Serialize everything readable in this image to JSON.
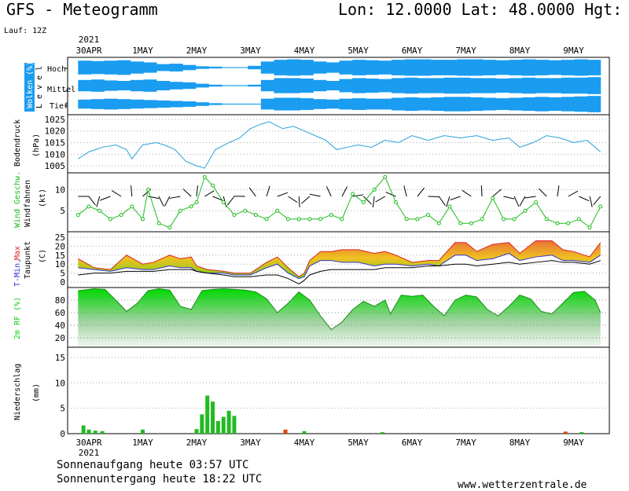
{
  "header": {
    "title": "GFS - Meteogramm",
    "coords": "Lon: 12.0000 Lat: 48.0000 Hgt: 5",
    "lauf": "Lauf: 12Z"
  },
  "footer": {
    "sunrise": "Sonnenaufgang heute 03:57 UTC",
    "sunset": "Sonnenuntergang heute 18:22 UTC",
    "site": "www.wetterzentrale.de"
  },
  "time_axis": {
    "year": "2021",
    "days": [
      "30APR",
      "1MAY",
      "2MAY",
      "3MAY",
      "4MAY",
      "5MAY",
      "6MAY",
      "7MAY",
      "8MAY",
      "9MAY"
    ]
  },
  "colors": {
    "cloud": "#1a9cf0",
    "pressure": "#2aa0d8",
    "wind": "#1dbb1d",
    "tmin": "#3333cc",
    "tmax": "#dd2222",
    "humidity": "#15cc15",
    "precip_rain": "#22bb22",
    "precip_conv": "#dd4400"
  },
  "panels": {
    "cloud": {
      "ylabel": "Wolken (%)",
      "levels_label": "L e v e l",
      "levels": [
        "Hoch",
        "Mittel",
        "Tief"
      ]
    },
    "pressure": {
      "ylabel": "Bodendruck",
      "unit": "(hPa)"
    },
    "wind": {
      "ylabel": "Wind Geschw.",
      "ylabel2": "Windfahnen",
      "unit": "(kt)"
    },
    "temp": {
      "ylabel_tmin": "T-Min,",
      "ylabel_tmax": "Max",
      "ylabel2": "Taupunkt",
      "unit": "(C)"
    },
    "humidity": {
      "ylabel": "2m RF (%)"
    },
    "precip": {
      "ylabel": "Niederschlag",
      "unit": "(mm)"
    }
  },
  "chart_data": [
    {
      "type": "heatmap",
      "title": "Wolken (%)",
      "description_levels": [
        "Hoch",
        "Mittel",
        "Tief"
      ],
      "x_day_start": -0.2,
      "x_day_end": 9.5,
      "cover_high": [
        80,
        75,
        80,
        85,
        70,
        60,
        40,
        45,
        30,
        15,
        10,
        5,
        5,
        20,
        70,
        90,
        95,
        90,
        70,
        60,
        80,
        90,
        85,
        80,
        90,
        95,
        95,
        90,
        90,
        95,
        95,
        90,
        85,
        90,
        95,
        90,
        85,
        90,
        95,
        90
      ],
      "cover_mid": [
        60,
        65,
        55,
        50,
        60,
        65,
        50,
        40,
        35,
        20,
        10,
        5,
        5,
        10,
        60,
        80,
        80,
        75,
        60,
        50,
        70,
        80,
        75,
        70,
        80,
        85,
        80,
        80,
        85,
        85,
        80,
        80,
        75,
        80,
        85,
        80,
        80,
        85,
        85,
        90
      ],
      "cover_low": [
        50,
        55,
        60,
        55,
        50,
        45,
        40,
        35,
        30,
        20,
        10,
        5,
        5,
        5,
        60,
        70,
        70,
        65,
        55,
        50,
        60,
        65,
        60,
        60,
        70,
        75,
        70,
        75,
        80,
        80,
        75,
        70,
        65,
        70,
        75,
        80,
        75,
        80,
        85,
        90
      ]
    },
    {
      "type": "line",
      "title": "Bodendruck",
      "ylabel": "(hPa)",
      "ylim": [
        1002,
        1027
      ],
      "yticks": [
        1005,
        1010,
        1015,
        1020,
        1025
      ],
      "x": [
        -0.2,
        0,
        0.25,
        0.5,
        0.7,
        0.8,
        1.0,
        1.25,
        1.4,
        1.6,
        1.8,
        2.0,
        2.15,
        2.35,
        2.6,
        2.8,
        3.0,
        3.2,
        3.35,
        3.6,
        3.8,
        4.0,
        4.2,
        4.4,
        4.6,
        4.8,
        5.0,
        5.25,
        5.5,
        5.75,
        6.0,
        6.3,
        6.6,
        6.9,
        7.2,
        7.5,
        7.8,
        8.0,
        8.25,
        8.5,
        8.75,
        9.0,
        9.25,
        9.5
      ],
      "y": [
        1008,
        1011,
        1013,
        1014,
        1012,
        1008,
        1014,
        1015,
        1014,
        1012,
        1007,
        1005,
        1004,
        1012,
        1015,
        1017,
        1021,
        1023,
        1024,
        1021,
        1022,
        1020,
        1018,
        1016,
        1012,
        1013,
        1014,
        1013,
        1016,
        1015,
        1018,
        1016,
        1018,
        1017,
        1018,
        1016,
        1017,
        1013,
        1015,
        1018,
        1017,
        1015,
        1016,
        1011
      ]
    },
    {
      "type": "line",
      "title": "Wind Geschw.",
      "ylabel": "(kt)",
      "ylim": [
        0,
        14
      ],
      "yticks": [
        5,
        10
      ],
      "x": [
        -0.2,
        0,
        0.2,
        0.4,
        0.6,
        0.8,
        1.0,
        1.1,
        1.3,
        1.5,
        1.7,
        1.9,
        2.0,
        2.15,
        2.3,
        2.5,
        2.7,
        2.9,
        3.1,
        3.3,
        3.5,
        3.7,
        3.9,
        4.1,
        4.3,
        4.5,
        4.7,
        4.9,
        5.1,
        5.3,
        5.5,
        5.7,
        5.9,
        6.1,
        6.3,
        6.5,
        6.7,
        6.9,
        7.1,
        7.3,
        7.5,
        7.7,
        7.9,
        8.1,
        8.3,
        8.5,
        8.7,
        8.9,
        9.1,
        9.3,
        9.5
      ],
      "y": [
        4,
        6,
        5,
        3,
        4,
        6,
        3,
        10,
        2,
        1,
        5,
        6,
        7,
        13,
        11,
        7,
        4,
        5,
        4,
        3,
        5,
        3,
        3,
        3,
        3,
        4,
        3,
        9,
        7,
        10,
        13,
        7,
        3,
        3,
        4,
        2,
        6,
        2,
        2,
        3,
        8,
        3,
        3,
        5,
        7,
        3,
        2,
        2,
        3,
        1,
        6
      ]
    },
    {
      "type": "area",
      "title": "T-Min, Max / Taupunkt",
      "ylabel": "(C)",
      "ylim": [
        -3,
        28
      ],
      "yticks": [
        0,
        5,
        10,
        15,
        20,
        25
      ],
      "x": [
        -0.2,
        0.1,
        0.4,
        0.7,
        1.0,
        1.2,
        1.5,
        1.7,
        1.9,
        2.0,
        2.2,
        2.5,
        2.7,
        3.0,
        3.3,
        3.5,
        3.7,
        3.9,
        4.0,
        4.1,
        4.3,
        4.5,
        4.7,
        5.0,
        5.3,
        5.5,
        5.7,
        6.0,
        6.3,
        6.5,
        6.8,
        7.0,
        7.2,
        7.5,
        7.8,
        8.0,
        8.3,
        8.6,
        8.8,
        9.0,
        9.3,
        9.5
      ],
      "t_max": [
        13,
        8,
        7,
        15,
        10,
        11,
        15,
        13,
        14,
        9,
        7,
        6,
        5,
        5,
        11,
        14,
        8,
        3,
        5,
        12,
        17,
        17,
        18,
        18,
        16,
        17,
        15,
        11,
        12,
        12,
        22,
        22,
        17,
        21,
        22,
        16,
        23,
        23,
        18,
        17,
        14,
        22
      ],
      "t_min": [
        8,
        7,
        6,
        8,
        7,
        7,
        9,
        8,
        8,
        6,
        5,
        5,
        4,
        4,
        8,
        10,
        5,
        2,
        3,
        9,
        12,
        12,
        11,
        11,
        9,
        10,
        10,
        9,
        10,
        9,
        15,
        15,
        12,
        13,
        16,
        12,
        14,
        15,
        12,
        12,
        11,
        15
      ],
      "dewpoint": [
        4,
        5,
        5,
        6,
        6,
        6,
        7,
        7,
        7,
        6,
        5,
        4,
        3,
        3,
        4,
        4,
        2,
        -1,
        1,
        4,
        6,
        7,
        7,
        7,
        7,
        8,
        8,
        8,
        9,
        9,
        10,
        10,
        9,
        10,
        11,
        10,
        11,
        12,
        11,
        11,
        10,
        12
      ]
    },
    {
      "type": "area",
      "title": "2m RF (%)",
      "ylabel": "(%)",
      "ylim": [
        5,
        100
      ],
      "yticks": [
        20,
        40,
        60,
        80
      ],
      "x": [
        -0.2,
        0.1,
        0.3,
        0.5,
        0.7,
        0.9,
        1.1,
        1.3,
        1.5,
        1.7,
        1.9,
        2.1,
        2.3,
        2.5,
        2.7,
        2.9,
        3.1,
        3.3,
        3.5,
        3.7,
        3.9,
        4.1,
        4.3,
        4.5,
        4.7,
        4.9,
        5.1,
        5.3,
        5.5,
        5.6,
        5.8,
        6.0,
        6.2,
        6.4,
        6.6,
        6.8,
        7.0,
        7.2,
        7.4,
        7.6,
        7.8,
        8.0,
        8.2,
        8.4,
        8.6,
        8.8,
        9.0,
        9.2,
        9.4,
        9.5
      ],
      "y": [
        95,
        98,
        97,
        80,
        62,
        75,
        95,
        98,
        96,
        70,
        65,
        95,
        97,
        98,
        97,
        96,
        93,
        82,
        60,
        75,
        93,
        80,
        55,
        33,
        45,
        65,
        78,
        70,
        80,
        58,
        88,
        86,
        88,
        70,
        55,
        80,
        88,
        85,
        65,
        55,
        70,
        88,
        82,
        62,
        58,
        75,
        92,
        94,
        80,
        60
      ]
    },
    {
      "type": "bar",
      "title": "Niederschlag",
      "ylabel": "(mm)",
      "ylim": [
        0,
        17
      ],
      "yticks": [
        0,
        5,
        10,
        15
      ],
      "x": [
        -0.1,
        0.0,
        0.12,
        0.25,
        1.0,
        2.0,
        2.1,
        2.2,
        2.3,
        2.4,
        2.5,
        2.6,
        2.7,
        3.65,
        4.0,
        5.45,
        8.85,
        9.15
      ],
      "values": [
        1.6,
        0.8,
        0.6,
        0.5,
        0.8,
        0.9,
        3.8,
        7.5,
        6.3,
        2.5,
        3.3,
        4.5,
        3.5,
        0.8,
        0.5,
        0.3,
        0.4,
        0.3
      ]
    }
  ]
}
